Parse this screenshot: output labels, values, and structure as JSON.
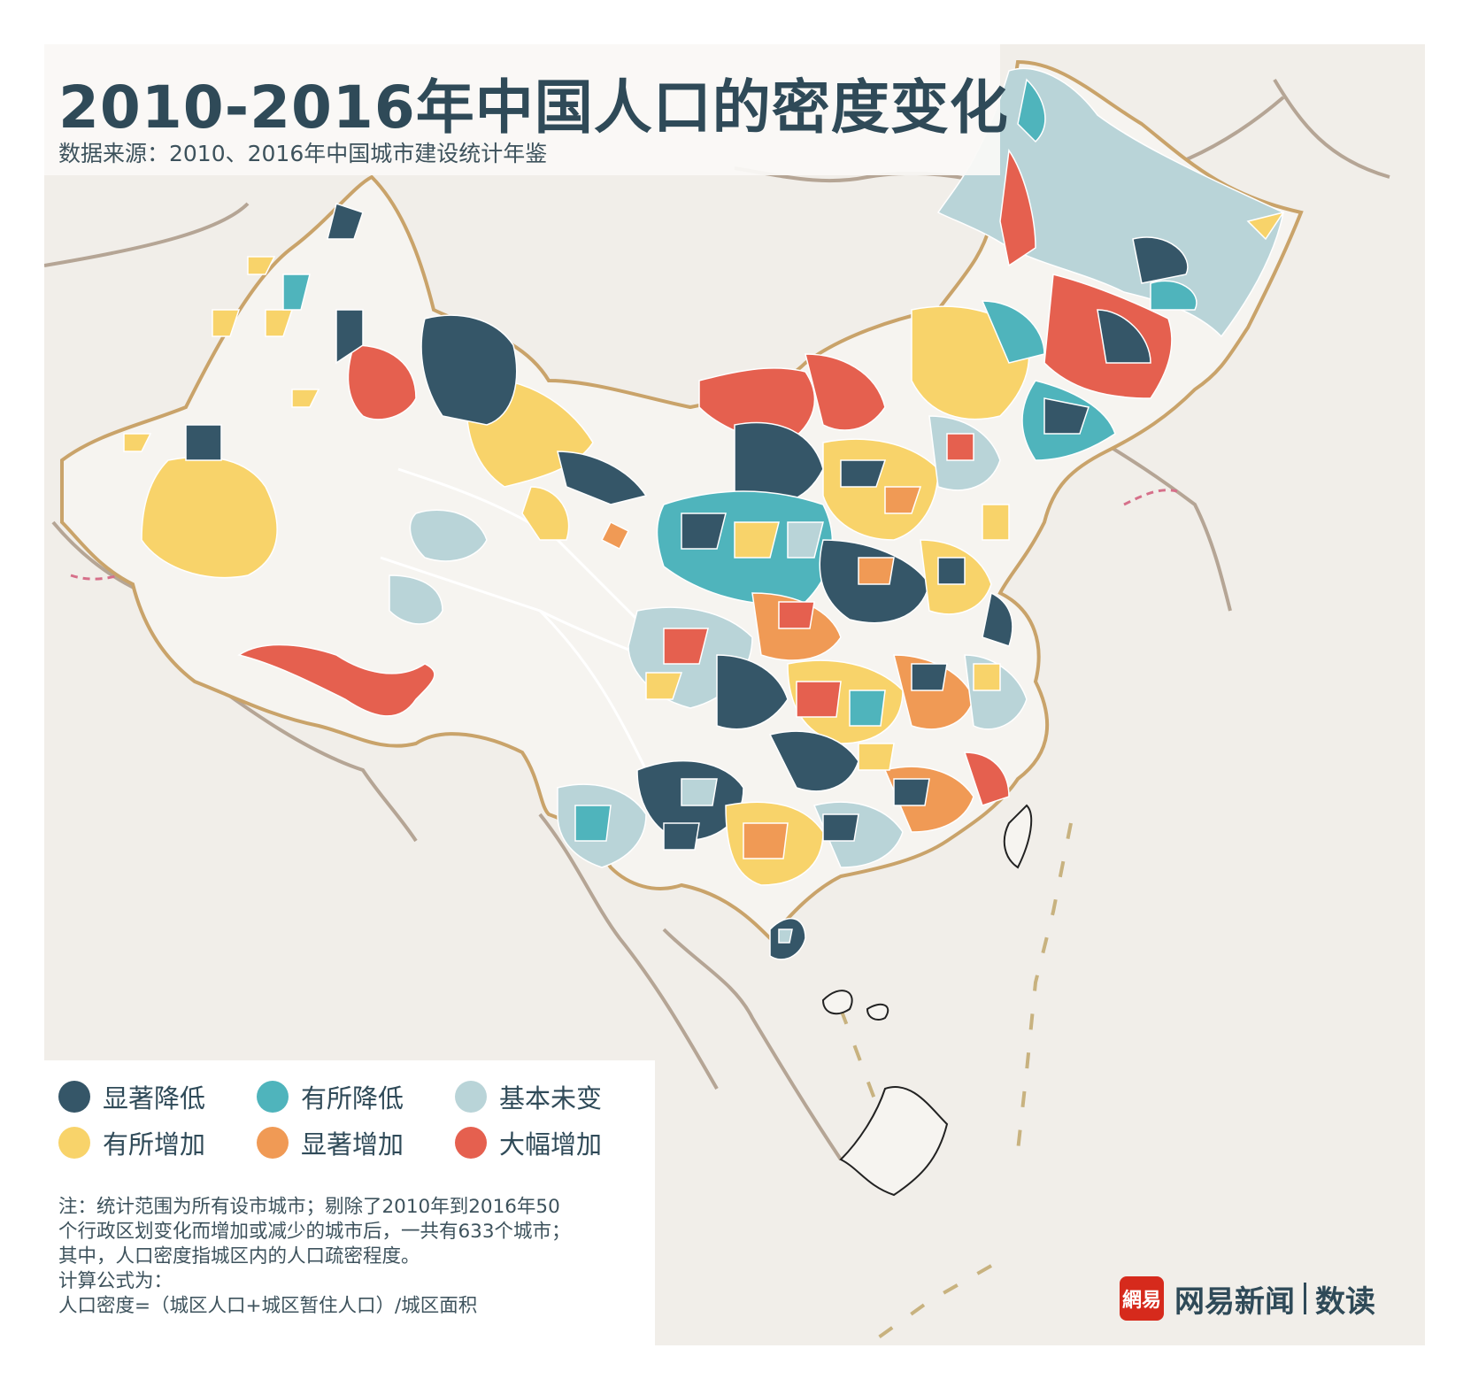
{
  "header": {
    "title": "2010-2016年中国人口的密度变化",
    "subtitle": "数据来源：2010、2016年中国城市建设统计年鉴"
  },
  "legend": {
    "items": [
      {
        "label": "显著降低",
        "color": "#355668"
      },
      {
        "label": "有所降低",
        "color": "#4fb4bc"
      },
      {
        "label": "基本未变",
        "color": "#b9d4d8"
      },
      {
        "label": "有所增加",
        "color": "#f8d36a"
      },
      {
        "label": "显著增加",
        "color": "#f09a55"
      },
      {
        "label": "大幅增加",
        "color": "#e5604f"
      }
    ]
  },
  "notes": {
    "line1": "注：统计范围为所有设市城市；剔除了2010年到2016年50",
    "line2": "个行政区划变化而增加或减少的城市后，一共有633个城市；",
    "line3": "其中，人口密度指城区内的人口疏密程度。",
    "line4": "计算公式为：",
    "line5": "人口密度=（城区人口+城区暂住人口）/城区面积"
  },
  "brand": {
    "logo": "網易",
    "name": "网易新闻",
    "sub": "数读"
  },
  "colors": {
    "background": "#f1eee9",
    "china_fill": "#f6f4f0",
    "border": "#c9a36a"
  }
}
